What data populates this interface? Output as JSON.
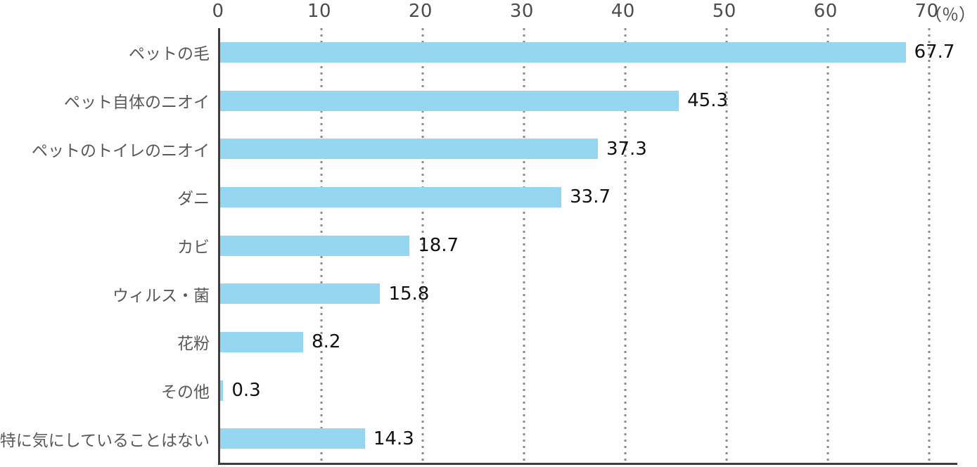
{
  "chart_data": {
    "type": "bar",
    "orientation": "horizontal",
    "title": "",
    "xlabel": "（％）",
    "ylabel": "",
    "unit_label": "（％）",
    "categories": [
      "ペットの毛",
      "ペット自体のニオイ",
      "ペットのトイレのニオイ",
      "ダニ",
      "カビ",
      "ウィルス・菌",
      "花粉",
      "その他",
      "特に気にしていることはない"
    ],
    "values": [
      67.7,
      45.3,
      37.3,
      33.7,
      18.7,
      15.8,
      8.2,
      0.3,
      14.3
    ],
    "value_labels": [
      "67.7",
      "45.3",
      "37.3",
      "33.7",
      "18.7",
      "15.8",
      "8.2",
      "0.3",
      "14.3"
    ],
    "x_ticks": [
      0,
      10,
      20,
      30,
      40,
      50,
      60,
      70
    ],
    "xlim": [
      0,
      72.8
    ],
    "grid": "vertical-dotted",
    "legend": null
  },
  "colors": {
    "bar": "#95d7f0",
    "axis_line": "#3d3d3d",
    "gridline": "#8c8c8c",
    "tick_label": "#4d4d4d",
    "category_label": "#595959",
    "value_label": "#111111",
    "background": "#ffffff"
  }
}
